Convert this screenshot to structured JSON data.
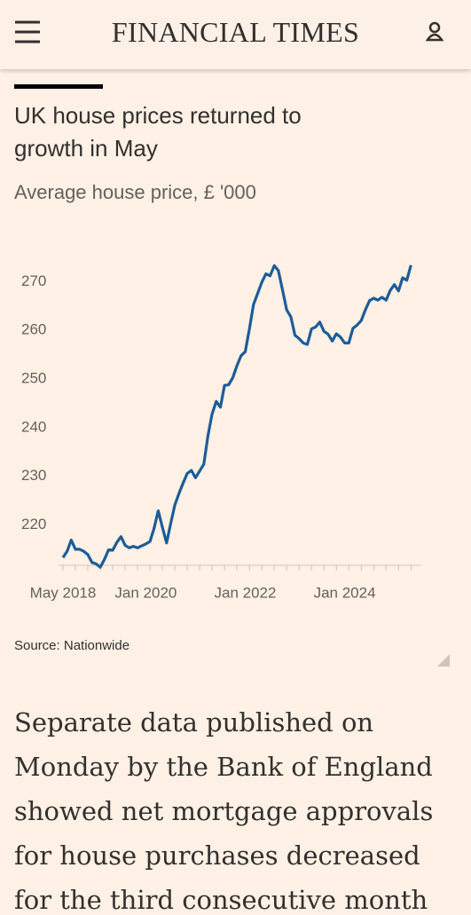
{
  "header": {
    "brand": "FINANCIAL TIMES"
  },
  "chart_data": {
    "type": "line",
    "title": "UK house prices returned to growth in May",
    "subtitle": "Average house price, £ '000",
    "source": "Source: Nationwide",
    "categories": [
      "May 2018",
      null,
      null,
      null,
      null,
      null,
      null,
      null,
      null,
      null,
      null,
      null,
      null,
      null,
      null,
      null,
      null,
      null,
      null,
      null,
      "Jan 2020",
      null,
      null,
      null,
      null,
      null,
      null,
      null,
      null,
      null,
      null,
      null,
      null,
      null,
      null,
      null,
      null,
      null,
      null,
      null,
      null,
      null,
      null,
      null,
      "Jan 2022",
      null,
      null,
      null,
      null,
      null,
      null,
      null,
      null,
      null,
      null,
      null,
      null,
      null,
      null,
      null,
      null,
      null,
      null,
      null,
      null,
      null,
      null,
      null,
      "Jan 2024",
      null,
      null,
      null,
      null,
      null,
      null,
      null,
      null,
      null,
      null,
      null,
      null,
      null,
      null,
      null,
      null
    ],
    "values": [
      213.3,
      214.6,
      216.9,
      215,
      215,
      214.6,
      213.9,
      212.3,
      212,
      211.3,
      212.9,
      214.9,
      214.8,
      216.4,
      217.6,
      215.8,
      215.3,
      215.6,
      215.3,
      215.7,
      216.1,
      216.6,
      219.3,
      222.9,
      219.5,
      216.3,
      220.3,
      224.1,
      226.5,
      228.6,
      230.6,
      231.2,
      229.7,
      231.1,
      232.5,
      238.3,
      242.8,
      245.4,
      244.2,
      248.7,
      248.8,
      250.3,
      252.7,
      254.8,
      255.6,
      260.2,
      265.3,
      267.6,
      269.9,
      271.6,
      271.2,
      273.3,
      272.3,
      268.3,
      264.2,
      262.8,
      259,
      258.3,
      257.4,
      257.1,
      260.3,
      260.7,
      261.7,
      259.8,
      259.2,
      257.8,
      259.3,
      258.6,
      257.4,
      257.4,
      260.4,
      261.1,
      262,
      264.2,
      266.1,
      266.6,
      266.2,
      266.8,
      266.2,
      268.2,
      269.4,
      268.1,
      270.8,
      270.3,
      273.4
    ],
    "color": "#1d5c99",
    "ylim": [
      211.7,
      275
    ],
    "yticks": [
      220,
      230,
      240,
      250,
      260,
      270
    ],
    "grid": false
  },
  "article": {
    "paragraph_lines": [
      "Separate data published on",
      "Monday by the Bank of England",
      "showed net mortgage approvals",
      "for house purchases decreased",
      "for the third consecutive month"
    ]
  }
}
